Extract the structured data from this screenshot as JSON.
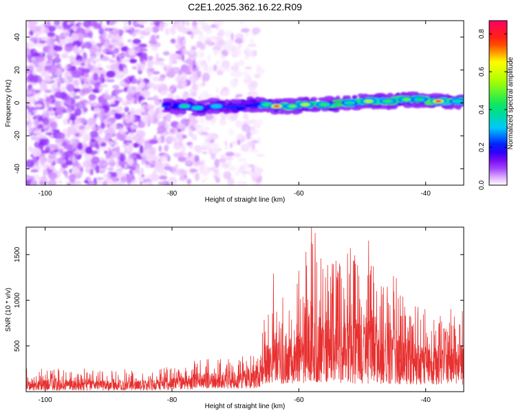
{
  "figure_title": "C2E1.2025.362.16.22.R09",
  "colors": {
    "snr_line": "#e83030",
    "axis": "#000000",
    "background": "#ffffff"
  },
  "chart_data": [
    {
      "type": "heatmap",
      "title": "C2E1.2025.362.16.22.R09",
      "xlabel": "Height of straight line (km)",
      "ylabel": "Frequency (Hz)",
      "xlim": [
        -103,
        -34
      ],
      "ylim": [
        -50,
        50
      ],
      "xticks": [
        -100,
        -80,
        -60,
        -40
      ],
      "yticks": [
        -40,
        -20,
        0,
        20,
        40
      ],
      "grid": false,
      "colorbar": {
        "label": "Normalized spectral amplitude",
        "range": [
          0,
          0.87
        ],
        "ticks": [
          0.0,
          0.2,
          0.4,
          0.6,
          0.8
        ],
        "colormap": "rainbow (white-magenta-blue-cyan-green-yellow-red-pink)"
      },
      "regions": [
        {
          "name": "noise",
          "x_range": [
            -103,
            -84
          ],
          "freq_range": [
            -50,
            50
          ],
          "density": "high",
          "amplitude": [
            0.02,
            0.12
          ]
        },
        {
          "name": "noise",
          "x_range": [
            -84,
            -76
          ],
          "freq_range": [
            -50,
            50
          ],
          "density": "medium",
          "amplitude": [
            0.02,
            0.08
          ]
        },
        {
          "name": "noise",
          "x_range": [
            -76,
            -66
          ],
          "freq_range": [
            -50,
            50
          ],
          "density": "low",
          "amplitude": [
            0.01,
            0.05
          ]
        },
        {
          "name": "signal",
          "x_range": [
            -81,
            -34
          ],
          "center_freq_hz": 0,
          "half_width_hz": 4,
          "amplitude": [
            0.15,
            0.87
          ]
        }
      ],
      "signal_peaks": [
        {
          "x": -78,
          "freq": -2,
          "amplitude": 0.4
        },
        {
          "x": -76,
          "freq": -3,
          "amplitude": 0.35
        },
        {
          "x": -73,
          "freq": -2,
          "amplitude": 0.3
        },
        {
          "x": -65,
          "freq": -1,
          "amplitude": 0.45
        },
        {
          "x": -63.5,
          "freq": -2,
          "amplitude": 0.85
        },
        {
          "x": -61,
          "freq": -2,
          "amplitude": 0.5
        },
        {
          "x": -59,
          "freq": -1,
          "amplitude": 0.55
        },
        {
          "x": -56,
          "freq": -1,
          "amplitude": 0.45
        },
        {
          "x": -52,
          "freq": 0,
          "amplitude": 0.4
        },
        {
          "x": -49,
          "freq": 1,
          "amplitude": 0.55
        },
        {
          "x": -46,
          "freq": 1,
          "amplitude": 0.45
        },
        {
          "x": -43,
          "freq": 2,
          "amplitude": 0.5
        },
        {
          "x": -41,
          "freq": 2,
          "amplitude": 0.4
        },
        {
          "x": -38,
          "freq": 1,
          "amplitude": 0.8
        },
        {
          "x": -35,
          "freq": 1,
          "amplitude": 0.35
        }
      ]
    },
    {
      "type": "line",
      "xlabel": "Height of straight line (km)",
      "ylabel": "SNR (10 * v/v)",
      "xlim": [
        -103,
        -34
      ],
      "ylim": [
        0,
        1800
      ],
      "xticks": [
        -100,
        -80,
        -60,
        -40
      ],
      "yticks": [
        500,
        1000,
        1500
      ],
      "grid": false,
      "series": [
        {
          "name": "SNR",
          "sampling": "dense random noise around an envelope",
          "x": [
            -103,
            -95,
            -90,
            -85,
            -80,
            -76,
            -70,
            -66.5,
            -65.5,
            -63,
            -60,
            -58,
            -55,
            -50,
            -45,
            -40,
            -34
          ],
          "baseline": [
            60,
            60,
            60,
            60,
            70,
            120,
            140,
            150,
            350,
            350,
            380,
            400,
            380,
            350,
            320,
            320,
            300
          ],
          "envelope": [
            250,
            260,
            250,
            240,
            280,
            350,
            380,
            400,
            900,
            1000,
            1200,
            1800,
            1500,
            1650,
            1300,
            900,
            950
          ],
          "peaks": [
            {
              "x": -58,
              "y": 1800
            },
            {
              "x": -49,
              "y": 1650
            },
            {
              "x": -60,
              "y": 1320
            },
            {
              "x": -64,
              "y": 1290
            },
            {
              "x": -54,
              "y": 1250
            },
            {
              "x": -47,
              "y": 1150
            },
            {
              "x": -44,
              "y": 1050
            }
          ]
        }
      ]
    }
  ]
}
